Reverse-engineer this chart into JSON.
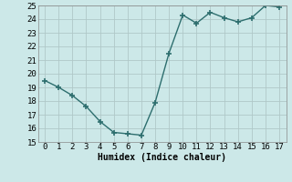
{
  "x": [
    0,
    1,
    2,
    3,
    4,
    5,
    6,
    7,
    8,
    9,
    10,
    11,
    12,
    13,
    14,
    15,
    16,
    17
  ],
  "y": [
    19.5,
    19.0,
    18.4,
    17.6,
    16.5,
    15.7,
    15.6,
    15.5,
    17.9,
    21.5,
    24.3,
    23.7,
    24.5,
    24.1,
    23.8,
    24.1,
    25.0,
    24.9
  ],
  "ylim": [
    15,
    25
  ],
  "xlim": [
    -0.5,
    17.5
  ],
  "yticks": [
    15,
    16,
    17,
    18,
    19,
    20,
    21,
    22,
    23,
    24,
    25
  ],
  "xticks": [
    0,
    1,
    2,
    3,
    4,
    5,
    6,
    7,
    8,
    9,
    10,
    11,
    12,
    13,
    14,
    15,
    16,
    17
  ],
  "xlabel": "Humidex (Indice chaleur)",
  "line_color": "#2d6e6e",
  "marker": "+",
  "marker_size": 4.0,
  "line_width": 1.0,
  "bg_color": "#cce8e8",
  "grid_color": "#b0c8c8",
  "xlabel_fontsize": 7,
  "tick_fontsize": 6.5
}
